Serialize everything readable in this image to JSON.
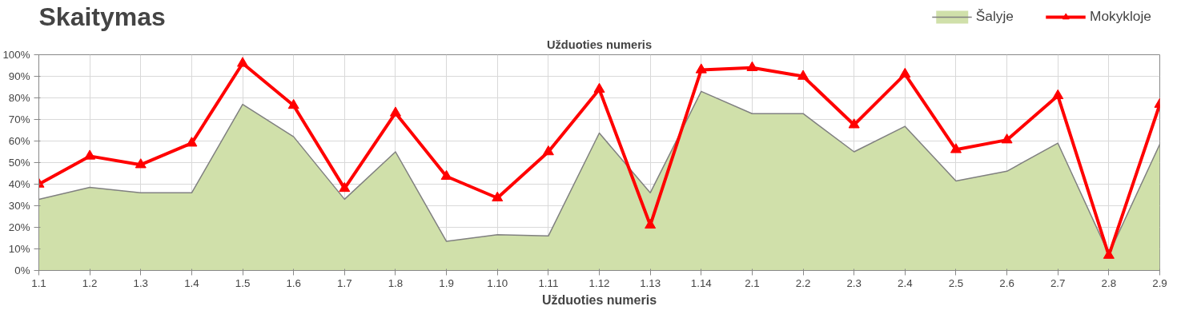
{
  "chart_data": {
    "type": "line",
    "title": "Skaitymas",
    "xlabel": "Užduoties numeris",
    "annotations": [
      "Užduoties numeris"
    ],
    "categories": [
      "1.1",
      "1.2",
      "1.3",
      "1.4",
      "1.5",
      "1.6",
      "1.7",
      "1.8",
      "1.9",
      "1.10",
      "1.11",
      "1.12",
      "1.13",
      "1.14",
      "2.1",
      "2.2",
      "2.3",
      "2.4",
      "2.5",
      "2.6",
      "2.7",
      "2.8",
      "2.9"
    ],
    "series": [
      {
        "name": "Šalyje",
        "type": "area",
        "color": "#d0e0aa",
        "marker": "none",
        "values": [
          33,
          38.5,
          36,
          36,
          77,
          62,
          33,
          55,
          13.5,
          16.6,
          16,
          63.7,
          36,
          83,
          72.7,
          72.7,
          55,
          66.8,
          41.5,
          46,
          59,
          7.6,
          58.5
        ]
      },
      {
        "name": "Mokykloje",
        "color": "#ff0000",
        "marker": "triangle",
        "values": [
          40,
          53,
          49,
          59,
          96,
          76.5,
          38,
          73,
          43.6,
          33.6,
          55,
          84,
          21,
          93,
          94,
          90,
          67.5,
          91,
          56,
          60.5,
          81,
          7,
          77
        ]
      }
    ],
    "ylim": [
      0,
      100
    ],
    "yticks": [
      {
        "value": 0,
        "label": "0%"
      },
      {
        "value": 10,
        "label": "10%"
      },
      {
        "value": 20,
        "label": "20%"
      },
      {
        "value": 30,
        "label": "30%"
      },
      {
        "value": 40,
        "label": "40%"
      },
      {
        "value": 50,
        "label": "50%"
      },
      {
        "value": 60,
        "label": "60%"
      },
      {
        "value": 70,
        "label": "70%"
      },
      {
        "value": 80,
        "label": "80%"
      },
      {
        "value": 90,
        "label": "90%"
      },
      {
        "value": 100,
        "label": "100%"
      }
    ],
    "grid": true,
    "legend": "top right",
    "line_style": "solid"
  }
}
